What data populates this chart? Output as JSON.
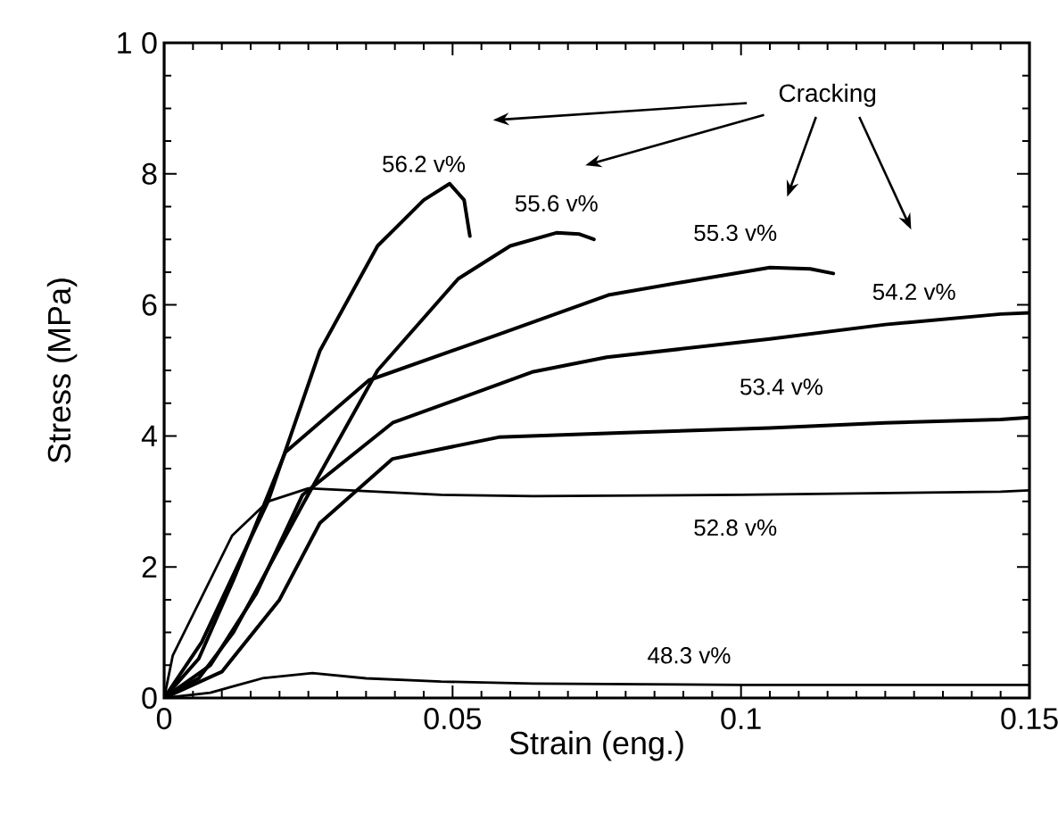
{
  "chart_data": {
    "type": "line",
    "xlabel": "Strain (eng.)",
    "ylabel": "Stress (MPa)",
    "xlim": [
      0,
      0.15
    ],
    "xticks": [
      0,
      0.05,
      0.1,
      0.15
    ],
    "ylim": [
      0,
      10
    ],
    "yticks": [
      0,
      2,
      4,
      6,
      8,
      {
        "value": 10,
        "label": "1 0"
      }
    ],
    "grid": false,
    "legend": false,
    "marker": "none",
    "line_style": "solid",
    "annotations": [
      "Cracking"
    ],
    "series": [
      {
        "name": "56.2 v%",
        "color": "#000000",
        "x": [
          0,
          0.0065,
          0.018,
          0.027,
          0.037,
          0.045,
          0.0495,
          0.052,
          0.053
        ],
        "values": [
          0,
          0.85,
          3.0,
          5.3,
          6.9,
          7.6,
          7.85,
          7.6,
          7.05
        ]
      },
      {
        "name": "55.6 v%",
        "color": "#000000",
        "x": [
          0,
          0.006,
          0.012,
          0.024,
          0.037,
          0.051,
          0.06,
          0.068,
          0.072,
          0.0745
        ],
        "values": [
          0,
          0.3,
          1.0,
          2.95,
          5.0,
          6.4,
          6.9,
          7.1,
          7.08,
          7.0
        ]
      },
      {
        "name": "55.3 v%",
        "color": "#000000",
        "x": [
          0,
          0.006,
          0.012,
          0.021,
          0.0355,
          0.058,
          0.077,
          0.09,
          0.105,
          0.112,
          0.116
        ],
        "values": [
          0,
          0.6,
          1.8,
          3.75,
          4.85,
          5.55,
          6.15,
          6.35,
          6.57,
          6.55,
          6.48
        ]
      },
      {
        "name": "54.2 v%",
        "color": "#000000",
        "x": [
          0,
          0.008,
          0.016,
          0.024,
          0.0396,
          0.064,
          0.0767,
          0.105,
          0.125,
          0.145,
          0.15
        ],
        "values": [
          0,
          0.5,
          1.6,
          3.1,
          4.2,
          4.98,
          5.2,
          5.48,
          5.7,
          5.86,
          5.88
        ]
      },
      {
        "name": "53.4 v%",
        "color": "#000000",
        "x": [
          0,
          0.01,
          0.02,
          0.027,
          0.0396,
          0.058,
          0.08,
          0.105,
          0.125,
          0.145,
          0.15
        ],
        "values": [
          0,
          0.4,
          1.5,
          2.67,
          3.65,
          3.98,
          4.05,
          4.12,
          4.2,
          4.25,
          4.28
        ]
      },
      {
        "name": "52.8 v%",
        "color": "#000000",
        "x": [
          0,
          0.0015,
          0.0118,
          0.018,
          0.025,
          0.048,
          0.064,
          0.1,
          0.145,
          0.15
        ],
        "values": [
          0,
          0.65,
          2.48,
          3.0,
          3.2,
          3.1,
          3.08,
          3.1,
          3.15,
          3.17
        ]
      },
      {
        "name": "48.3 v%",
        "color": "#000000",
        "x": [
          0,
          0.008,
          0.017,
          0.0257,
          0.035,
          0.048,
          0.064,
          0.1,
          0.15
        ],
        "values": [
          0,
          0.08,
          0.3,
          0.38,
          0.3,
          0.25,
          0.22,
          0.2,
          0.2
        ]
      }
    ]
  }
}
